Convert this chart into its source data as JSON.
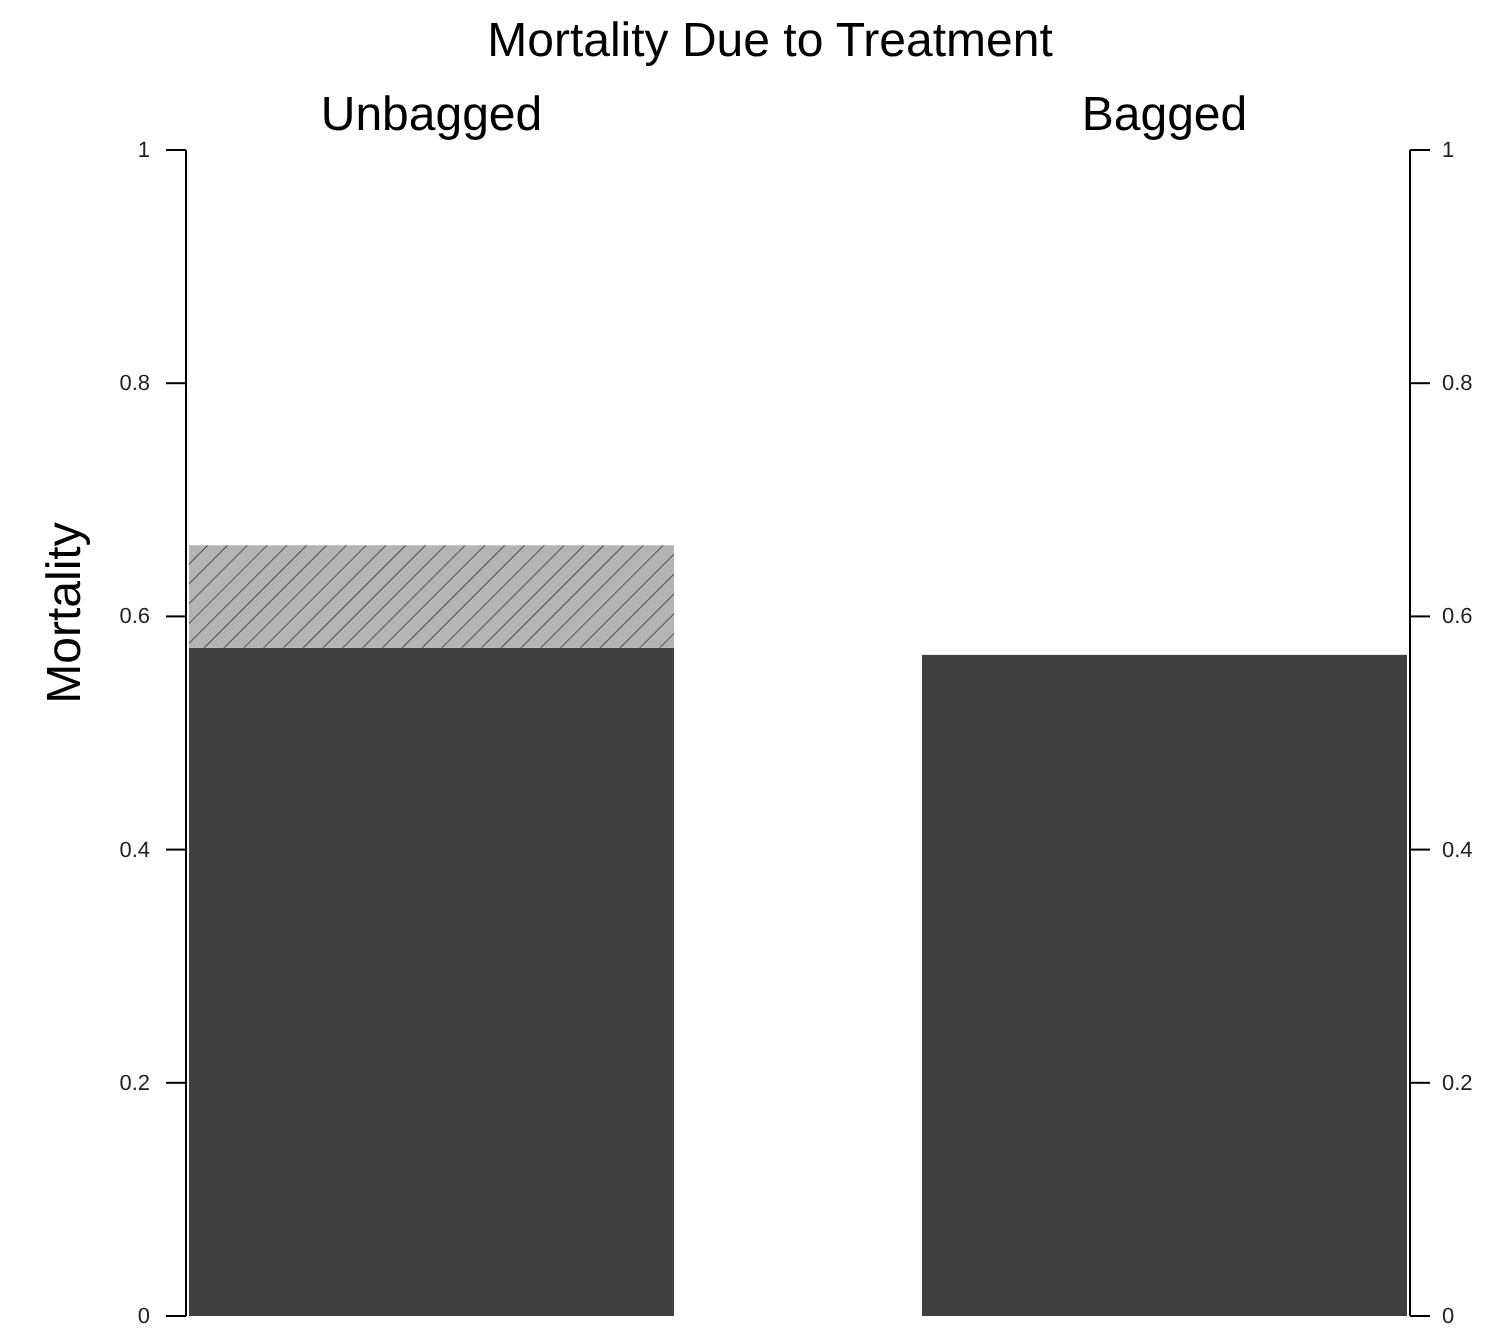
{
  "chart_data": [
    {
      "type": "bar",
      "title": "Mortality Due to Treatment",
      "ylabel": "Mortality",
      "categories": [
        "Unbagged"
      ],
      "stacked": true,
      "series": [
        {
          "color": "#404040",
          "values": [
            0.573
          ]
        },
        {
          "color": "#b4b4b4",
          "values": [
            0.088
          ]
        }
      ],
      "ylim": [
        0,
        1
      ],
      "yticks": [
        0,
        0.2,
        0.4,
        0.6,
        0.8,
        1
      ]
    },
    {
      "type": "bar",
      "categories": [
        "Bagged"
      ],
      "series": [
        {
          "color": "#404040",
          "values": [
            0.567
          ]
        }
      ],
      "ylim": [
        0,
        1
      ],
      "yticks": [
        0,
        0.2,
        0.4,
        0.6,
        0.8,
        1
      ]
    }
  ]
}
